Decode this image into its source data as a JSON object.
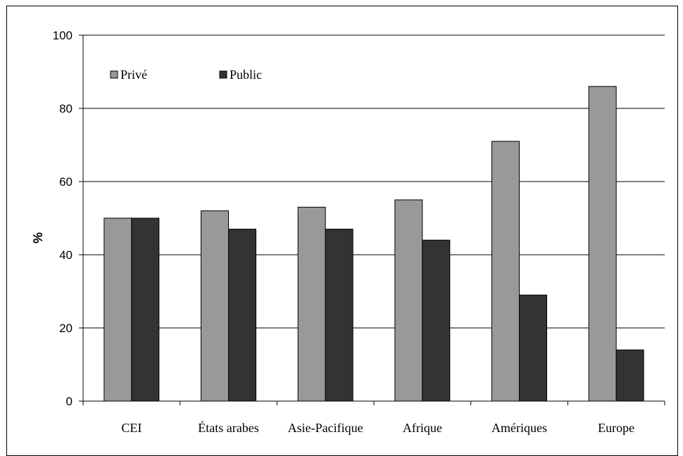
{
  "chart_data": {
    "type": "bar",
    "title": "",
    "xlabel": "",
    "ylabel": "%",
    "ylim": [
      0,
      100
    ],
    "yticks": [
      0,
      20,
      40,
      60,
      80,
      100
    ],
    "grid": true,
    "legend_position": "top-left",
    "categories": [
      "CEI",
      "États arabes",
      "Asie-Pacifique",
      "Afrique",
      "Amériques",
      "Europe"
    ],
    "series": [
      {
        "name": "Privé",
        "color": "#999999",
        "values": [
          50,
          52,
          53,
          55,
          71,
          86
        ]
      },
      {
        "name": "Public",
        "color": "#333333",
        "values": [
          50,
          47,
          47,
          44,
          29,
          14
        ]
      }
    ]
  }
}
